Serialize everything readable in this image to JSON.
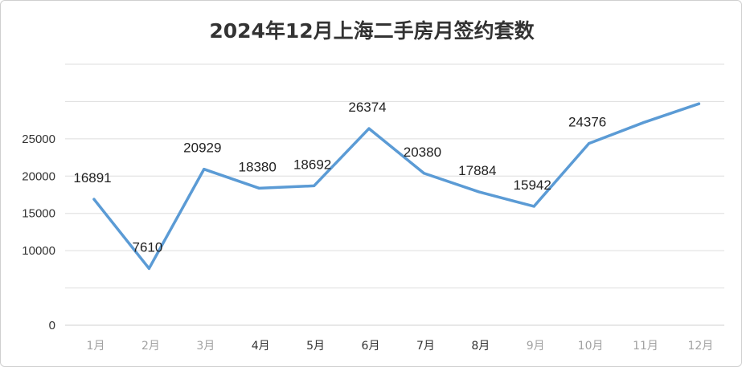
{
  "chart_data": {
    "type": "line",
    "title": "2024年12月上海二手房月签约套数",
    "xlabel": "",
    "ylabel": "",
    "ylim": [
      0,
      35000
    ],
    "y_ticks": [
      {
        "value": 0,
        "label": "0"
      },
      {
        "value": 5000,
        "label": ""
      },
      {
        "value": 10000,
        "label": "10000"
      },
      {
        "value": 15000,
        "label": "15000"
      },
      {
        "value": 20000,
        "label": "20000"
      },
      {
        "value": 25000,
        "label": "25000"
      },
      {
        "value": 30000,
        "label": ""
      },
      {
        "value": 35000,
        "label": ""
      }
    ],
    "grid": true,
    "legend": "none",
    "color": "#5b9bd5",
    "categories": [
      "1月",
      "2月",
      "3月",
      "4月",
      "5月",
      "6月",
      "7月",
      "8月",
      "9月",
      "10月",
      "11月",
      "12月"
    ],
    "category_visible": [
      false,
      false,
      false,
      true,
      true,
      true,
      true,
      true,
      false,
      false,
      false,
      false
    ],
    "values": [
      16891,
      7610,
      20929,
      18380,
      18692,
      26374,
      20380,
      17884,
      15942,
      24376,
      27200,
      29700
    ],
    "data_labels": [
      "16891",
      "7610",
      "20929",
      "18380",
      "18692",
      "26374",
      "20380",
      "17884",
      "15942",
      "24376",
      "",
      ""
    ]
  }
}
